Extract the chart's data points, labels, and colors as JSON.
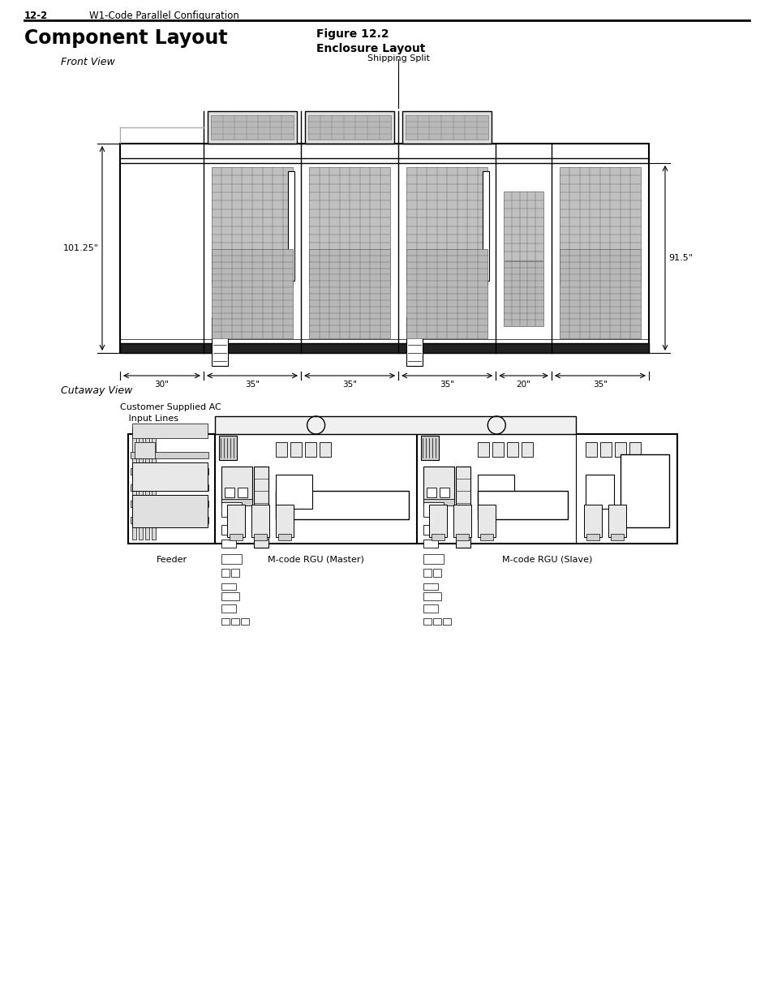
{
  "page_header_left": "12-2",
  "page_header_right": "W1-Code Parallel Configuration",
  "title": "Component Layout",
  "figure_title": "Figure 12.2",
  "figure_subtitle": "Enclosure Layout",
  "front_view_label": "Front View",
  "cutaway_view_label": "Cutaway View",
  "shipping_split_label": "Shipping Split",
  "dim_left": "101.25\"",
  "dim_right": "91.5\"",
  "dim_widths": [
    "30\"",
    "35\"",
    "35\"",
    "35\"",
    "20\"",
    "35\""
  ],
  "feeder_label": "Feeder",
  "master_label": "M-code RGU (Master)",
  "slave_label": "M-code RGU (Slave)",
  "customer_ac_label": "Customer Supplied AC\n   Input Lines",
  "bg_color": "#ffffff"
}
